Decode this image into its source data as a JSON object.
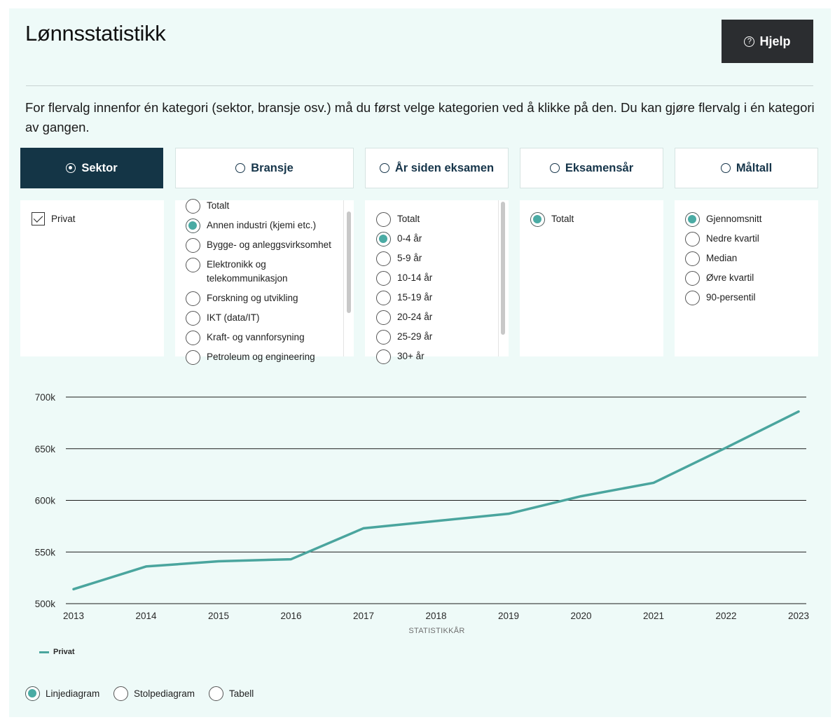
{
  "header": {
    "title": "Lønnsstatistikk",
    "help_label": "Hjelp"
  },
  "intro": "For flervalg innenfor én kategori (sektor, bransje osv.) må du først velge kategorien ved å klikke på den. Du kan gjøre flervalg i én kategori av gangen.",
  "tabs": [
    {
      "label": "Sektor",
      "active": true
    },
    {
      "label": "Bransje",
      "active": false
    },
    {
      "label": "År siden eksamen",
      "active": false
    },
    {
      "label": "Eksamensår",
      "active": false
    },
    {
      "label": "Måltall",
      "active": false
    }
  ],
  "sektor": {
    "options": [
      {
        "label": "Privat",
        "checked": true
      }
    ]
  },
  "bransje": {
    "options": [
      {
        "label": "Totalt",
        "selected": false
      },
      {
        "label": "Annen industri (kjemi etc.)",
        "selected": true
      },
      {
        "label": "Bygge- og anleggsvirksomhet",
        "selected": false
      },
      {
        "label": "Elektronikk og telekommunikasjon",
        "selected": false
      },
      {
        "label": "Forskning og utvikling",
        "selected": false
      },
      {
        "label": "IKT (data/IT)",
        "selected": false
      },
      {
        "label": "Kraft- og vannforsyning",
        "selected": false
      },
      {
        "label": "Petroleum og engineering",
        "selected": false
      }
    ]
  },
  "aar_siden": {
    "options": [
      {
        "label": "Totalt",
        "selected": false
      },
      {
        "label": "0-4 år",
        "selected": true
      },
      {
        "label": "5-9 år",
        "selected": false
      },
      {
        "label": "10-14 år",
        "selected": false
      },
      {
        "label": "15-19 år",
        "selected": false
      },
      {
        "label": "20-24 år",
        "selected": false
      },
      {
        "label": "25-29 år",
        "selected": false
      },
      {
        "label": "30+ år",
        "selected": false
      }
    ]
  },
  "eksamensaar": {
    "options": [
      {
        "label": "Totalt",
        "selected": true
      }
    ]
  },
  "maaltall": {
    "options": [
      {
        "label": "Gjennomsnitt",
        "selected": true
      },
      {
        "label": "Nedre kvartil",
        "selected": false
      },
      {
        "label": "Median",
        "selected": false
      },
      {
        "label": "Øvre kvartil",
        "selected": false
      },
      {
        "label": "90-persentil",
        "selected": false
      }
    ]
  },
  "chart_data": {
    "type": "line",
    "xlabel": "STATISTIKKÅR",
    "ylabel": "",
    "ylim": [
      500000,
      700000
    ],
    "yticks": [
      500000,
      550000,
      600000,
      650000,
      700000
    ],
    "ytick_labels": [
      "500k",
      "550k",
      "600k",
      "650k",
      "700k"
    ],
    "x": [
      "2013",
      "2014",
      "2015",
      "2016",
      "2017",
      "2018",
      "2019",
      "2020",
      "2021",
      "2022",
      "2023"
    ],
    "grid": true,
    "legend_position": "bottom-left",
    "series": [
      {
        "name": "Privat",
        "color": "#4aa59e",
        "values": [
          514000,
          536000,
          541000,
          543000,
          573000,
          580000,
          587000,
          604000,
          617000,
          651000,
          686000
        ]
      }
    ]
  },
  "view": {
    "options": [
      {
        "label": "Linjediagram",
        "selected": true
      },
      {
        "label": "Stolpediagram",
        "selected": false
      },
      {
        "label": "Tabell",
        "selected": false
      }
    ]
  }
}
